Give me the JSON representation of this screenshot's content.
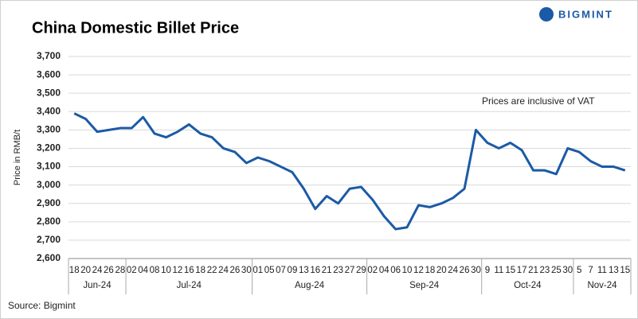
{
  "brand": "BIGMINT",
  "chart_data": {
    "type": "line",
    "title": "China Domestic Billet Price",
    "y_label": "Price in RMB/t",
    "annotation": "Prices are inclusive of VAT",
    "source": "Source: Bigmint",
    "color": "#1b5aa6",
    "grid": true,
    "categories": [
      "18",
      "20",
      "24",
      "26",
      "28",
      "02",
      "04",
      "08",
      "10",
      "12",
      "16",
      "18",
      "22",
      "24",
      "26",
      "30",
      "01",
      "05",
      "07",
      "09",
      "13",
      "16",
      "21",
      "23",
      "27",
      "29",
      "02",
      "04",
      "06",
      "10",
      "12",
      "18",
      "20",
      "24",
      "26",
      "30",
      "9",
      "11",
      "15",
      "17",
      "21",
      "23",
      "25",
      "30",
      "5",
      "7",
      "11",
      "13",
      "15"
    ],
    "values": [
      3390,
      3360,
      3290,
      3300,
      3310,
      3310,
      3370,
      3280,
      3260,
      3290,
      3330,
      3280,
      3260,
      3200,
      3180,
      3120,
      3150,
      3130,
      3100,
      3070,
      2980,
      2870,
      2940,
      2900,
      2980,
      2990,
      2920,
      2830,
      2760,
      2770,
      2890,
      2880,
      2900,
      2930,
      2980,
      3300,
      3230,
      3200,
      3230,
      3190,
      3080,
      3080,
      3060,
      3200,
      3180,
      3130,
      3100,
      3100,
      3080
    ],
    "month_groups": [
      {
        "name": "Jun-24",
        "count": 5
      },
      {
        "name": "Jul-24",
        "count": 11
      },
      {
        "name": "Aug-24",
        "count": 10
      },
      {
        "name": "Sep-24",
        "count": 10
      },
      {
        "name": "Oct-24",
        "count": 8
      },
      {
        "name": "Nov-24",
        "count": 5
      }
    ],
    "ylim": [
      2600,
      3700
    ],
    "yticks": [
      {
        "value": 2600,
        "label": "2,600"
      },
      {
        "value": 2700,
        "label": "2,700"
      },
      {
        "value": 2800,
        "label": "2,800"
      },
      {
        "value": 2900,
        "label": "2,900"
      },
      {
        "value": 3000,
        "label": "3,000"
      },
      {
        "value": 3100,
        "label": "3,100"
      },
      {
        "value": 3200,
        "label": "3,200"
      },
      {
        "value": 3300,
        "label": "3,300"
      },
      {
        "value": 3400,
        "label": "3,400"
      },
      {
        "value": 3500,
        "label": "3,500"
      },
      {
        "value": 3600,
        "label": "3,600"
      },
      {
        "value": 3700,
        "label": "3,700"
      }
    ]
  }
}
